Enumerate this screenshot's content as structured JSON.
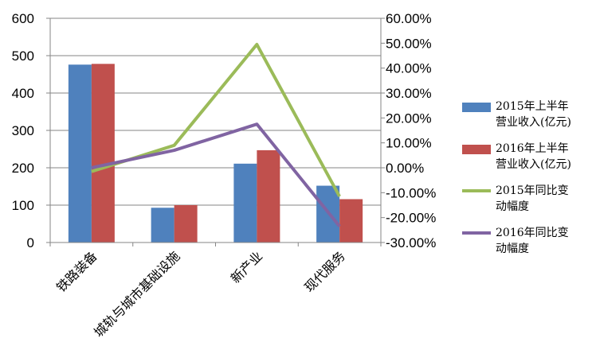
{
  "chart_data": {
    "type": "bar",
    "categories": [
      "铁路装备",
      "城轨与城市基础设施",
      "新产业",
      "现代服务"
    ],
    "series": [
      {
        "name": "2015年上半年营业收入(亿元)",
        "kind": "bar",
        "axis": "left",
        "color": "#4F81BD",
        "values": [
          476,
          93,
          211,
          152
        ]
      },
      {
        "name": "2016年上半年营业收入(亿元)",
        "kind": "bar",
        "axis": "left",
        "color": "#C0504D",
        "values": [
          478,
          100,
          247,
          116
        ]
      },
      {
        "name": "2015年同比变动幅度",
        "kind": "line",
        "axis": "right",
        "color": "#9BBB59",
        "values": [
          -0.015,
          0.09,
          0.495,
          -0.115
        ]
      },
      {
        "name": "2016年同比变动幅度",
        "kind": "line",
        "axis": "right",
        "color": "#8064A2",
        "values": [
          0.0,
          0.07,
          0.175,
          -0.235
        ]
      }
    ],
    "ylim_left": [
      0,
      600
    ],
    "ylim_right": [
      -0.3,
      0.6
    ],
    "yticks_left": [
      "0",
      "100",
      "200",
      "300",
      "400",
      "500",
      "600"
    ],
    "yticks_right": [
      "-30.00%",
      "-20.00%",
      "-10.00%",
      "0.00%",
      "10.00%",
      "20.00%",
      "30.00%",
      "40.00%",
      "50.00%",
      "60.00%"
    ],
    "grid": true,
    "legend_position": "right"
  },
  "legend": [
    {
      "line1": "2015年上半年",
      "line2": "营业收入(亿元)"
    },
    {
      "line1": "2016年上半年",
      "line2": "营业收入(亿元)"
    },
    {
      "line1": "2015年同比变",
      "line2": "动幅度"
    },
    {
      "line1": "2016年同比变",
      "line2": "动幅度"
    }
  ]
}
